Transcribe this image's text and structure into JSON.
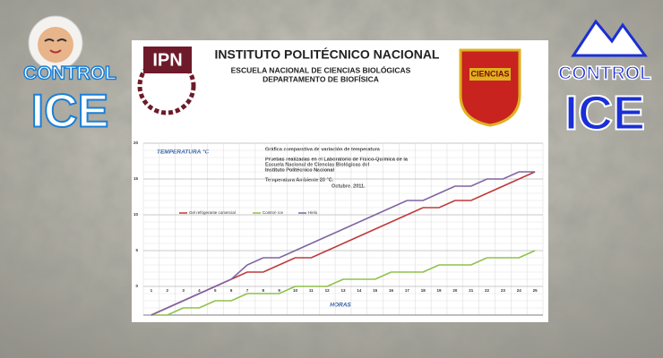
{
  "header": {
    "title": "INSTITUTO POLITÉCNICO NACIONAL",
    "subtitle_1": "ESCUELA NACIONAL DE CIENCIAS BIOLÓGICAS",
    "subtitle_2": "DEPARTAMENTO DE BIOFÍSICA"
  },
  "logos": {
    "left": {
      "line_1": "CONTROL",
      "line_2": "ICE"
    },
    "right": {
      "line_1": "CONTROL",
      "line_2": "ICE"
    },
    "ipn": "IPN",
    "encb": "CIENCIAS"
  },
  "chart_data": {
    "type": "line",
    "title": "Gráfica comparativa de variación de temperatura",
    "notes": [
      "Pruebas realizadas en el Laboratorio de Físico-Química de la",
      "Escuela Nacional de Ciencias Biológicas del",
      "Instituto Politécnico Nacional"
    ],
    "ambient": "Temperatura  Ambiente 20 °C.",
    "date": "Octubre, 2011.",
    "y_label": "TEMPERATURA °C",
    "x_label": "HORAS",
    "categories": [
      "1",
      "2",
      "3",
      "4",
      "5",
      "6",
      "7",
      "8",
      "9",
      "10",
      "11",
      "12",
      "13",
      "14",
      "15",
      "16",
      "17",
      "18",
      "19",
      "20",
      "21",
      "22",
      "23",
      "24",
      "25"
    ],
    "ylim": [
      -4,
      20
    ],
    "yticks": [
      0,
      5,
      10,
      15,
      20
    ],
    "grid": true,
    "series": [
      {
        "name": "Gel refrigerante comercial",
        "color": "#c0393b",
        "values": [
          -4,
          -3,
          -2,
          -1,
          0,
          1,
          2,
          2,
          3,
          4,
          4,
          5,
          6,
          7,
          8,
          9,
          10,
          11,
          11,
          12,
          12,
          13,
          14,
          15,
          16
        ]
      },
      {
        "name": "Control- ice",
        "color": "#8fc04a",
        "values": [
          -4,
          -4,
          -3,
          -3,
          -2,
          -2,
          -1,
          -1,
          -1,
          0,
          0,
          0,
          1,
          1,
          1,
          2,
          2,
          2,
          3,
          3,
          3,
          4,
          4,
          4,
          5
        ]
      },
      {
        "name": "Hielo",
        "color": "#8064a2",
        "values": [
          -4,
          -3,
          -2,
          -1,
          0,
          1,
          3,
          4,
          4,
          5,
          6,
          7,
          8,
          9,
          10,
          11,
          12,
          12,
          13,
          14,
          14,
          15,
          15,
          16,
          16
        ]
      }
    ]
  }
}
